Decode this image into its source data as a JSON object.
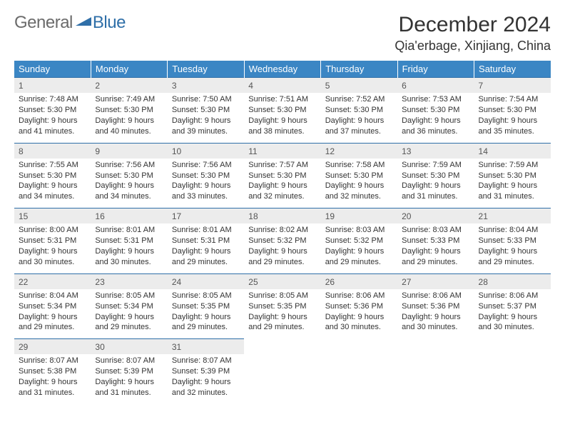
{
  "logo": {
    "part1": "General",
    "part2": "Blue"
  },
  "title": "December 2024",
  "location": "Qia'erbage, Xinjiang, China",
  "colors": {
    "header_bg": "#3b86c4",
    "header_text": "#ffffff",
    "border": "#2f6fa8",
    "daynum_bg": "#ececec",
    "logo_gray": "#6b6b6b",
    "logo_blue": "#2f6fa8"
  },
  "weekdays": [
    "Sunday",
    "Monday",
    "Tuesday",
    "Wednesday",
    "Thursday",
    "Friday",
    "Saturday"
  ],
  "weeks": [
    [
      {
        "n": "1",
        "sunrise": "Sunrise: 7:48 AM",
        "sunset": "Sunset: 5:30 PM",
        "daylight": "Daylight: 9 hours and 41 minutes."
      },
      {
        "n": "2",
        "sunrise": "Sunrise: 7:49 AM",
        "sunset": "Sunset: 5:30 PM",
        "daylight": "Daylight: 9 hours and 40 minutes."
      },
      {
        "n": "3",
        "sunrise": "Sunrise: 7:50 AM",
        "sunset": "Sunset: 5:30 PM",
        "daylight": "Daylight: 9 hours and 39 minutes."
      },
      {
        "n": "4",
        "sunrise": "Sunrise: 7:51 AM",
        "sunset": "Sunset: 5:30 PM",
        "daylight": "Daylight: 9 hours and 38 minutes."
      },
      {
        "n": "5",
        "sunrise": "Sunrise: 7:52 AM",
        "sunset": "Sunset: 5:30 PM",
        "daylight": "Daylight: 9 hours and 37 minutes."
      },
      {
        "n": "6",
        "sunrise": "Sunrise: 7:53 AM",
        "sunset": "Sunset: 5:30 PM",
        "daylight": "Daylight: 9 hours and 36 minutes."
      },
      {
        "n": "7",
        "sunrise": "Sunrise: 7:54 AM",
        "sunset": "Sunset: 5:30 PM",
        "daylight": "Daylight: 9 hours and 35 minutes."
      }
    ],
    [
      {
        "n": "8",
        "sunrise": "Sunrise: 7:55 AM",
        "sunset": "Sunset: 5:30 PM",
        "daylight": "Daylight: 9 hours and 34 minutes."
      },
      {
        "n": "9",
        "sunrise": "Sunrise: 7:56 AM",
        "sunset": "Sunset: 5:30 PM",
        "daylight": "Daylight: 9 hours and 34 minutes."
      },
      {
        "n": "10",
        "sunrise": "Sunrise: 7:56 AM",
        "sunset": "Sunset: 5:30 PM",
        "daylight": "Daylight: 9 hours and 33 minutes."
      },
      {
        "n": "11",
        "sunrise": "Sunrise: 7:57 AM",
        "sunset": "Sunset: 5:30 PM",
        "daylight": "Daylight: 9 hours and 32 minutes."
      },
      {
        "n": "12",
        "sunrise": "Sunrise: 7:58 AM",
        "sunset": "Sunset: 5:30 PM",
        "daylight": "Daylight: 9 hours and 32 minutes."
      },
      {
        "n": "13",
        "sunrise": "Sunrise: 7:59 AM",
        "sunset": "Sunset: 5:30 PM",
        "daylight": "Daylight: 9 hours and 31 minutes."
      },
      {
        "n": "14",
        "sunrise": "Sunrise: 7:59 AM",
        "sunset": "Sunset: 5:30 PM",
        "daylight": "Daylight: 9 hours and 31 minutes."
      }
    ],
    [
      {
        "n": "15",
        "sunrise": "Sunrise: 8:00 AM",
        "sunset": "Sunset: 5:31 PM",
        "daylight": "Daylight: 9 hours and 30 minutes."
      },
      {
        "n": "16",
        "sunrise": "Sunrise: 8:01 AM",
        "sunset": "Sunset: 5:31 PM",
        "daylight": "Daylight: 9 hours and 30 minutes."
      },
      {
        "n": "17",
        "sunrise": "Sunrise: 8:01 AM",
        "sunset": "Sunset: 5:31 PM",
        "daylight": "Daylight: 9 hours and 29 minutes."
      },
      {
        "n": "18",
        "sunrise": "Sunrise: 8:02 AM",
        "sunset": "Sunset: 5:32 PM",
        "daylight": "Daylight: 9 hours and 29 minutes."
      },
      {
        "n": "19",
        "sunrise": "Sunrise: 8:03 AM",
        "sunset": "Sunset: 5:32 PM",
        "daylight": "Daylight: 9 hours and 29 minutes."
      },
      {
        "n": "20",
        "sunrise": "Sunrise: 8:03 AM",
        "sunset": "Sunset: 5:33 PM",
        "daylight": "Daylight: 9 hours and 29 minutes."
      },
      {
        "n": "21",
        "sunrise": "Sunrise: 8:04 AM",
        "sunset": "Sunset: 5:33 PM",
        "daylight": "Daylight: 9 hours and 29 minutes."
      }
    ],
    [
      {
        "n": "22",
        "sunrise": "Sunrise: 8:04 AM",
        "sunset": "Sunset: 5:34 PM",
        "daylight": "Daylight: 9 hours and 29 minutes."
      },
      {
        "n": "23",
        "sunrise": "Sunrise: 8:05 AM",
        "sunset": "Sunset: 5:34 PM",
        "daylight": "Daylight: 9 hours and 29 minutes."
      },
      {
        "n": "24",
        "sunrise": "Sunrise: 8:05 AM",
        "sunset": "Sunset: 5:35 PM",
        "daylight": "Daylight: 9 hours and 29 minutes."
      },
      {
        "n": "25",
        "sunrise": "Sunrise: 8:05 AM",
        "sunset": "Sunset: 5:35 PM",
        "daylight": "Daylight: 9 hours and 29 minutes."
      },
      {
        "n": "26",
        "sunrise": "Sunrise: 8:06 AM",
        "sunset": "Sunset: 5:36 PM",
        "daylight": "Daylight: 9 hours and 30 minutes."
      },
      {
        "n": "27",
        "sunrise": "Sunrise: 8:06 AM",
        "sunset": "Sunset: 5:36 PM",
        "daylight": "Daylight: 9 hours and 30 minutes."
      },
      {
        "n": "28",
        "sunrise": "Sunrise: 8:06 AM",
        "sunset": "Sunset: 5:37 PM",
        "daylight": "Daylight: 9 hours and 30 minutes."
      }
    ],
    [
      {
        "n": "29",
        "sunrise": "Sunrise: 8:07 AM",
        "sunset": "Sunset: 5:38 PM",
        "daylight": "Daylight: 9 hours and 31 minutes."
      },
      {
        "n": "30",
        "sunrise": "Sunrise: 8:07 AM",
        "sunset": "Sunset: 5:39 PM",
        "daylight": "Daylight: 9 hours and 31 minutes."
      },
      {
        "n": "31",
        "sunrise": "Sunrise: 8:07 AM",
        "sunset": "Sunset: 5:39 PM",
        "daylight": "Daylight: 9 hours and 32 minutes."
      },
      null,
      null,
      null,
      null
    ]
  ]
}
